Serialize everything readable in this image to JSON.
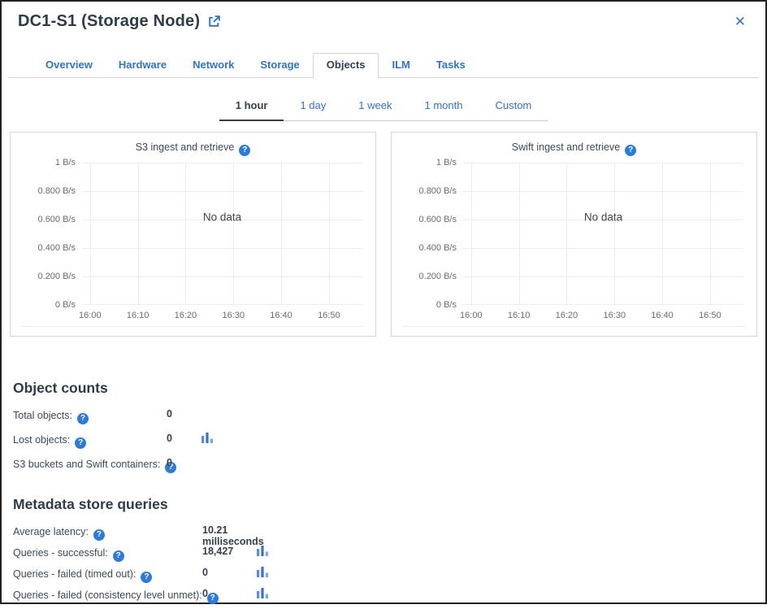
{
  "window": {
    "title": "DC1-S1 (Storage Node)"
  },
  "icons": {
    "close": "✕",
    "help": "?",
    "external_link": "external-link",
    "bar_chart": "bar-chart"
  },
  "colors": {
    "link_blue": "#3273c5",
    "help_icon_blue": "#2d7bd8",
    "active_text": "#32404e",
    "gridline": "#ededed",
    "bar_icon_left": "#5b8bd9",
    "bar_icon_mid": "#3a70c9",
    "bar_icon_right": "#7fa6e3"
  },
  "tabs": [
    {
      "label": "Overview",
      "active": false
    },
    {
      "label": "Hardware",
      "active": false
    },
    {
      "label": "Network",
      "active": false
    },
    {
      "label": "Storage",
      "active": false
    },
    {
      "label": "Objects",
      "active": true
    },
    {
      "label": "ILM",
      "active": false
    },
    {
      "label": "Tasks",
      "active": false
    }
  ],
  "time_ranges": [
    {
      "label": "1 hour",
      "active": true
    },
    {
      "label": "1 day",
      "active": false
    },
    {
      "label": "1 week",
      "active": false
    },
    {
      "label": "1 month",
      "active": false
    },
    {
      "label": "Custom",
      "active": false
    }
  ],
  "charts": [
    {
      "type": "line",
      "title": "S3 ingest and retrieve",
      "no_data_label": "No data",
      "series": [],
      "ylim": [
        "0 B/s",
        "1 B/s"
      ],
      "y_ticks": [
        "1 B/s",
        "0.800 B/s",
        "0.600 B/s",
        "0.400 B/s",
        "0.200 B/s",
        "0 B/s"
      ],
      "x_ticks": [
        "16:00",
        "16:10",
        "16:20",
        "16:30",
        "16:40",
        "16:50"
      ]
    },
    {
      "type": "line",
      "title": "Swift ingest and retrieve",
      "no_data_label": "No data",
      "series": [],
      "ylim": [
        "0 B/s",
        "1 B/s"
      ],
      "y_ticks": [
        "1 B/s",
        "0.800 B/s",
        "0.600 B/s",
        "0.400 B/s",
        "0.200 B/s",
        "0 B/s"
      ],
      "x_ticks": [
        "16:00",
        "16:10",
        "16:20",
        "16:30",
        "16:40",
        "16:50"
      ]
    }
  ],
  "object_counts": {
    "heading": "Object counts",
    "rows": [
      {
        "label": "Total objects:",
        "value": "0",
        "chart_icon": false
      },
      {
        "label": "Lost objects:",
        "value": "0",
        "chart_icon": true
      },
      {
        "label": "S3 buckets and Swift containers:",
        "value": "0",
        "chart_icon": false
      }
    ]
  },
  "metadata_queries": {
    "heading": "Metadata store queries",
    "rows": [
      {
        "label": "Average latency:",
        "value": "10.21 milliseconds",
        "chart_icon": false
      },
      {
        "label": "Queries - successful:",
        "value": "18,427",
        "chart_icon": true
      },
      {
        "label": "Queries - failed (timed out):",
        "value": "0",
        "chart_icon": true
      },
      {
        "label": "Queries - failed (consistency level unmet):",
        "value": "0",
        "chart_icon": true
      }
    ]
  }
}
